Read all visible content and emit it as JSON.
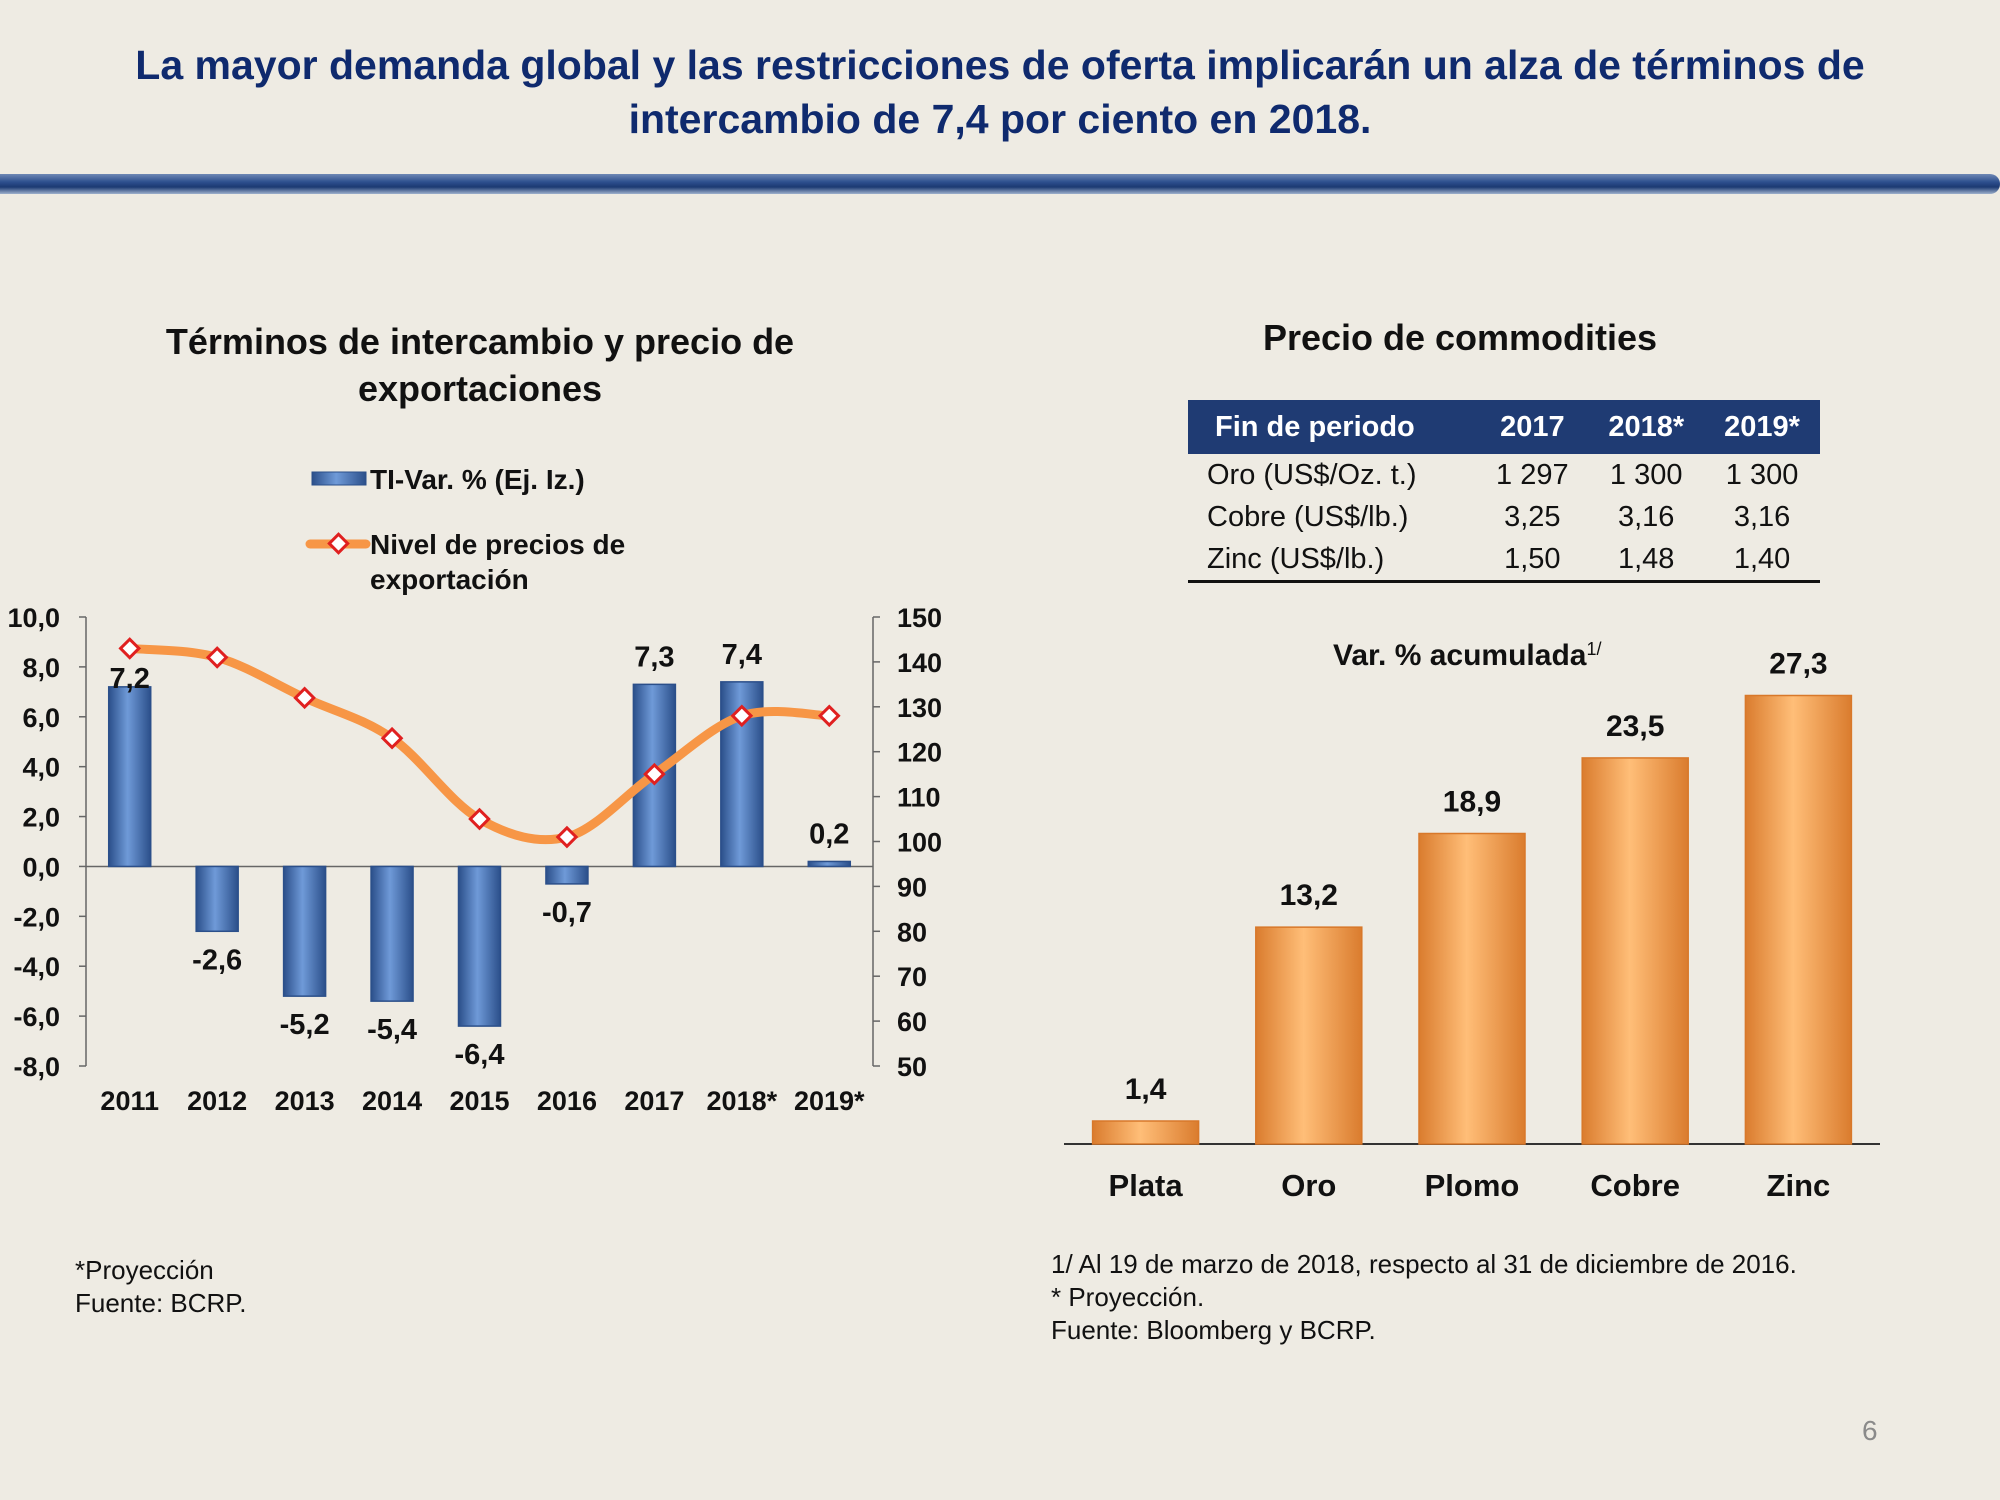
{
  "title": "La mayor demanda global y las restricciones de oferta implicarán un alza de términos de intercambio de 7,4 por ciento en 2018.",
  "left_panel": {
    "title": "Términos de intercambio y precio de exportaciones",
    "footnote_1": "*Proyección",
    "footnote_2": "Fuente: BCRP."
  },
  "right_panel": {
    "title": "Precio de commodities",
    "table": {
      "headers": [
        "Fin de periodo",
        "2017",
        "2018*",
        "2019*"
      ],
      "rows": [
        [
          "Oro (US$/Oz. t.)",
          "1 297",
          "1 300",
          "1 300"
        ],
        [
          "Cobre (US$/lb.)",
          "3,25",
          "3,16",
          "3,16"
        ],
        [
          "Zinc (US$/lb.)",
          "1,50",
          "1,48",
          "1,40"
        ]
      ]
    },
    "footnote_1": "1/  Al 19 de marzo de 2018, respecto al 31 de diciembre de 2016.",
    "footnote_2": "* Proyección.",
    "footnote_3": "Fuente: Bloomberg y BCRP."
  },
  "page_number": "6",
  "chart_data": [
    {
      "type": "bar+line",
      "title": "Términos de intercambio y precio de exportaciones",
      "categories": [
        "2011",
        "2012",
        "2013",
        "2014",
        "2015",
        "2016",
        "2017",
        "2018*",
        "2019*"
      ],
      "series": [
        {
          "name": "TI-Var. %  (Ej. Iz.)",
          "type": "bar",
          "axis": "left",
          "values": [
            7.2,
            -2.6,
            -5.2,
            -5.4,
            -6.4,
            -0.7,
            7.3,
            7.4,
            0.2
          ],
          "labels": [
            "7,2",
            "-2,6",
            "-5,2",
            "-5,4",
            "-6,4",
            "-0,7",
            "7,3",
            "7,4",
            "0,2"
          ]
        },
        {
          "name_line1": "Nivel de precios de",
          "name_line2": "exportación",
          "type": "line",
          "axis": "right",
          "values": [
            143,
            141,
            132,
            123,
            105,
            101,
            115,
            128,
            128
          ]
        }
      ],
      "y_left": {
        "min": -8,
        "max": 10,
        "step": 2,
        "ticks": [
          "10,0",
          "8,0",
          "6,0",
          "4,0",
          "2,0",
          "0,0",
          "-2,0",
          "-4,0",
          "-6,0",
          "-8,0"
        ]
      },
      "y_right": {
        "min": 50,
        "max": 150,
        "step": 10,
        "ticks": [
          "150",
          "140",
          "130",
          "120",
          "110",
          "100",
          "90",
          "80",
          "70",
          "60",
          "50"
        ]
      },
      "legend": "top",
      "colors": {
        "bar": "#4F7FC4",
        "bar_dark": "#2B4F8A",
        "line": "#F79646",
        "marker": "#E02020"
      }
    },
    {
      "type": "bar",
      "title": "Var. % acumulada",
      "title_superscript": "1/",
      "categories": [
        "Plata",
        "Oro",
        "Plomo",
        "Cobre",
        "Zinc"
      ],
      "values": [
        1.4,
        13.2,
        18.9,
        23.5,
        27.3
      ],
      "labels": [
        "1,4",
        "13,2",
        "18,9",
        "23,5",
        "27,3"
      ],
      "ylim": [
        0,
        28
      ],
      "colors": {
        "bar": "#F9A456",
        "bar_dark": "#D8782A"
      }
    }
  ]
}
